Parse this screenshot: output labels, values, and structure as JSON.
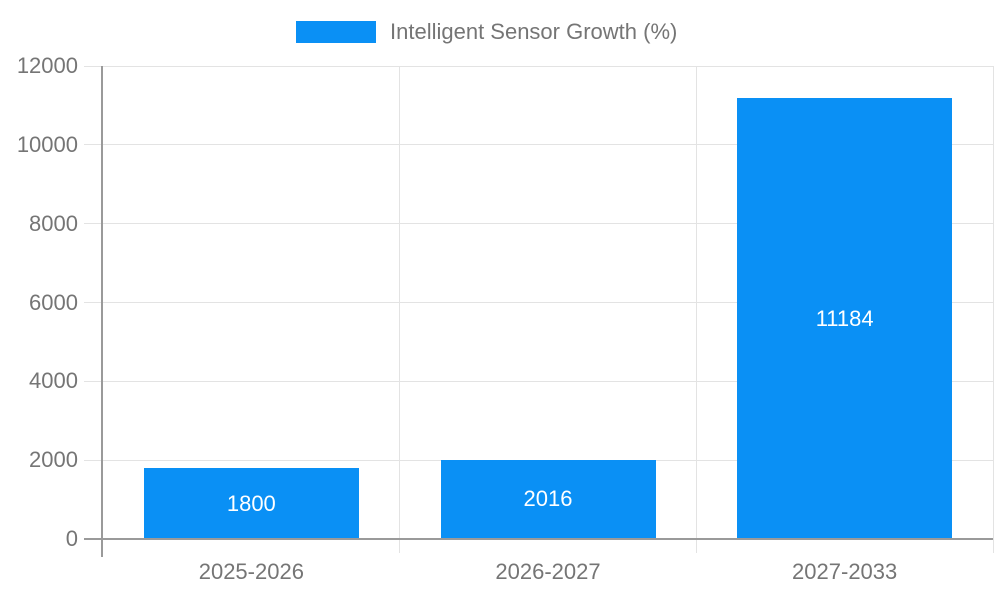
{
  "chart_data": {
    "type": "bar",
    "title": "Intelligent Sensor Growth (%)",
    "categories": [
      "2025-2026",
      "2026-2027",
      "2027-2033"
    ],
    "values": [
      1800,
      2016,
      11184
    ],
    "bar_labels": [
      "1800",
      "2016",
      "11184"
    ],
    "xlabel": "",
    "ylabel": "",
    "ylim": [
      0,
      12000
    ],
    "yticks": [
      0,
      2000,
      4000,
      6000,
      8000,
      10000,
      12000
    ],
    "grid": true,
    "legend_position": "top-center",
    "bar_label_position": "inside-center"
  },
  "colors": {
    "bar": "#0a90f5",
    "axis": "#9a9a9a",
    "gridline": "#e3e3e3",
    "text": "#757575",
    "bar_label": "#ffffff",
    "background": "#ffffff"
  }
}
